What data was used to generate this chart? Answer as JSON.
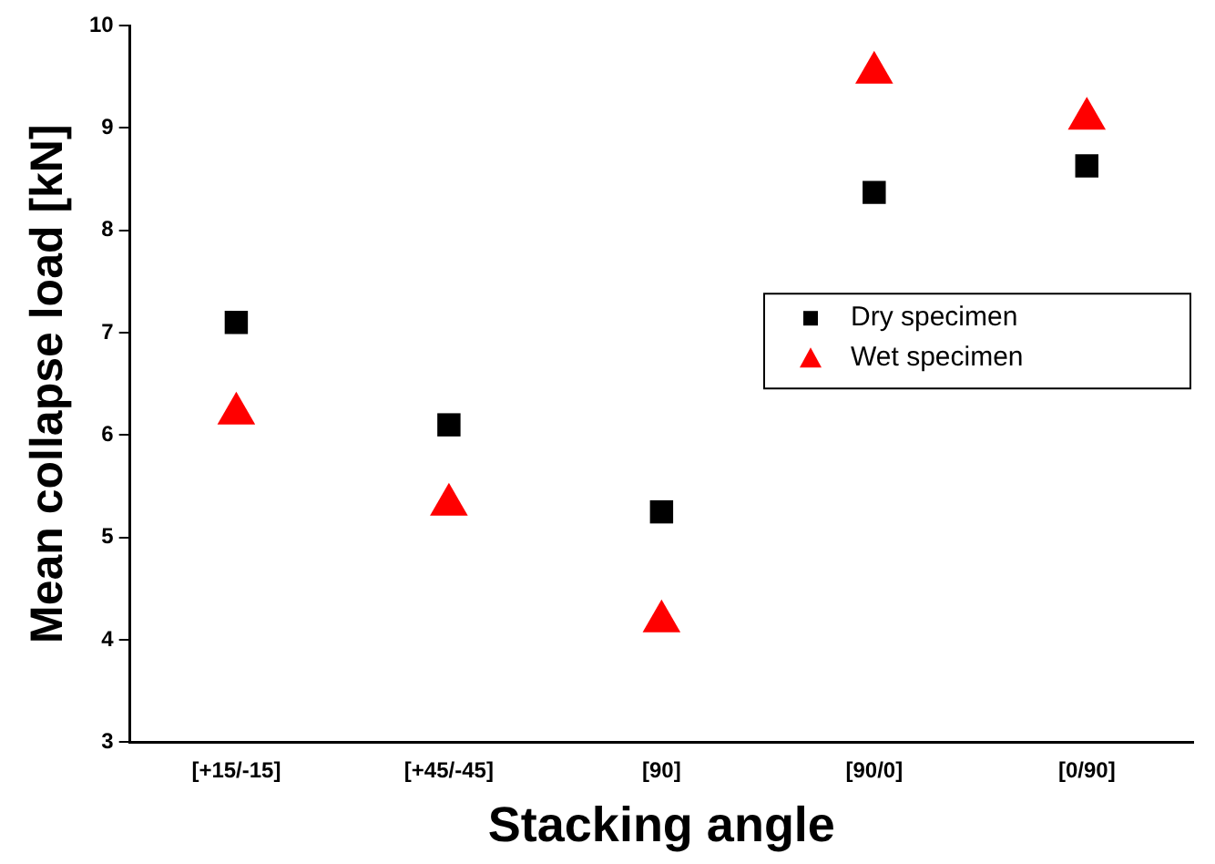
{
  "chart_data": {
    "type": "scatter",
    "xlabel": "Stacking angle",
    "ylabel": "Mean collapse load [kN]",
    "categories": [
      "[+15/-15]",
      "[+45/-45]",
      "[90]",
      "[90/0]",
      "[0/90]"
    ],
    "series": [
      {
        "name": "Dry specimen",
        "color": "#000000",
        "marker": "square",
        "values": [
          7.1,
          6.1,
          5.25,
          8.37,
          8.63
        ]
      },
      {
        "name": "Wet specimen",
        "color": "#ff0000",
        "marker": "triangle",
        "values": [
          6.21,
          5.32,
          4.18,
          9.54,
          9.09
        ]
      }
    ],
    "ylim": [
      3,
      10
    ],
    "yticks": [
      3,
      4,
      5,
      6,
      7,
      8,
      9,
      10
    ],
    "grid": false,
    "legend": "right"
  }
}
